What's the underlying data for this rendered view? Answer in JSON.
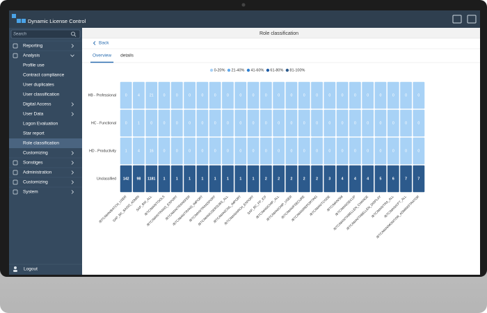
{
  "app": {
    "title": "Dynamic License Control",
    "search_placeholder": "Search"
  },
  "sidebar": {
    "items": [
      {
        "label": "Reporting",
        "level": 0,
        "chevron": "right"
      },
      {
        "label": "Analysis",
        "level": 0,
        "chevron": "down"
      },
      {
        "label": "Profile use",
        "level": 1
      },
      {
        "label": "Contract compliance",
        "level": 1
      },
      {
        "label": "User duplicates",
        "level": 1
      },
      {
        "label": "User classification",
        "level": 1
      },
      {
        "label": "Digital Access",
        "level": 1,
        "chevron": "right"
      },
      {
        "label": "User Data",
        "level": 1,
        "chevron": "right"
      },
      {
        "label": "Logon Evaluation",
        "level": 1
      },
      {
        "label": "Star report",
        "level": 1
      },
      {
        "label": "Role classification",
        "level": 1,
        "selected": true
      },
      {
        "label": "Customizing",
        "level": 1,
        "chevron": "right"
      },
      {
        "label": "Sonstiges",
        "level": 0,
        "chevron": "right"
      },
      {
        "label": "Administration",
        "level": 0,
        "chevron": "right"
      },
      {
        "label": "Customizing",
        "level": 0,
        "chevron": "right"
      },
      {
        "label": "System",
        "level": 0,
        "chevron": "right"
      }
    ],
    "footer": "Logout"
  },
  "page": {
    "title": "Role classification",
    "back": "Back",
    "tabs": [
      "Overview",
      "details"
    ],
    "active_tab": 0
  },
  "chart_data": {
    "type": "heatmap",
    "legend": [
      {
        "label": "0-20%",
        "color": "#a8d2f6"
      },
      {
        "label": "21-40%",
        "color": "#62a9ea"
      },
      {
        "label": "41-60%",
        "color": "#2e7fd0"
      },
      {
        "label": "61-80%",
        "color": "#1f5ca6"
      },
      {
        "label": "81-100%",
        "color": "#2c5a8c"
      }
    ],
    "rows": [
      "HB - Professional",
      "HC - Functional",
      "HD - Productivity",
      "Unclassified"
    ],
    "columns": [
      "/BTC/MAN/BATCH_USER",
      "SAP_BC_BASIS_ADMIN",
      "SAP_BW_ALL",
      "/BTC/MAN/TOOLS",
      "/BTC/MAN/TRANS_EXPORT",
      "/BTC/MAN/TRANSFER",
      "/BTC/MAN/TRANS_IMPORT",
      "/BTC/MAN/TRANSPORT",
      "/BTC/MAN/USERSUBS_ALL",
      "/BTC/MAN/CWL_IMPORT",
      "/BTC/MAN/ARCH_EXPORT",
      "SAP_BC_FP_ICF",
      "/BTC/MAN/CHIP_ALL",
      "/BTC/MAN/CHIP_USER",
      "/BTC/MAN/FSECURE",
      "/BTC/MAN/REPORTING",
      "/BTC/MAN/TCODE",
      "/BTC/MAN/SM",
      "/BTC/MAN/SECUP",
      "/BTC/MAN/TABELLEN_CHANGE",
      "/BTC/MAN/TABELLEN_DISPLAY",
      "/BTC/MAN/TRA_ALL",
      "/BTC/MAN/CPT_ALL",
      "/BTC/MAN/MONITOR_ADMINISTRATOR"
    ],
    "values": [
      [
        0,
        4,
        21,
        0,
        0,
        0,
        0,
        0,
        0,
        0,
        0,
        0,
        0,
        0,
        0,
        0,
        0,
        0,
        0,
        0,
        0,
        0,
        0,
        0
      ],
      [
        0,
        1,
        0,
        0,
        0,
        0,
        0,
        0,
        0,
        0,
        0,
        0,
        0,
        0,
        0,
        0,
        0,
        0,
        0,
        0,
        0,
        0,
        0,
        0
      ],
      [
        1,
        4,
        16,
        0,
        0,
        0,
        0,
        0,
        0,
        0,
        0,
        0,
        0,
        0,
        0,
        0,
        0,
        0,
        0,
        0,
        0,
        0,
        0,
        0
      ],
      [
        142,
        98,
        1181,
        1,
        1,
        1,
        1,
        1,
        1,
        1,
        1,
        2,
        2,
        2,
        2,
        2,
        3,
        4,
        4,
        4,
        5,
        6,
        7,
        7
      ]
    ]
  }
}
